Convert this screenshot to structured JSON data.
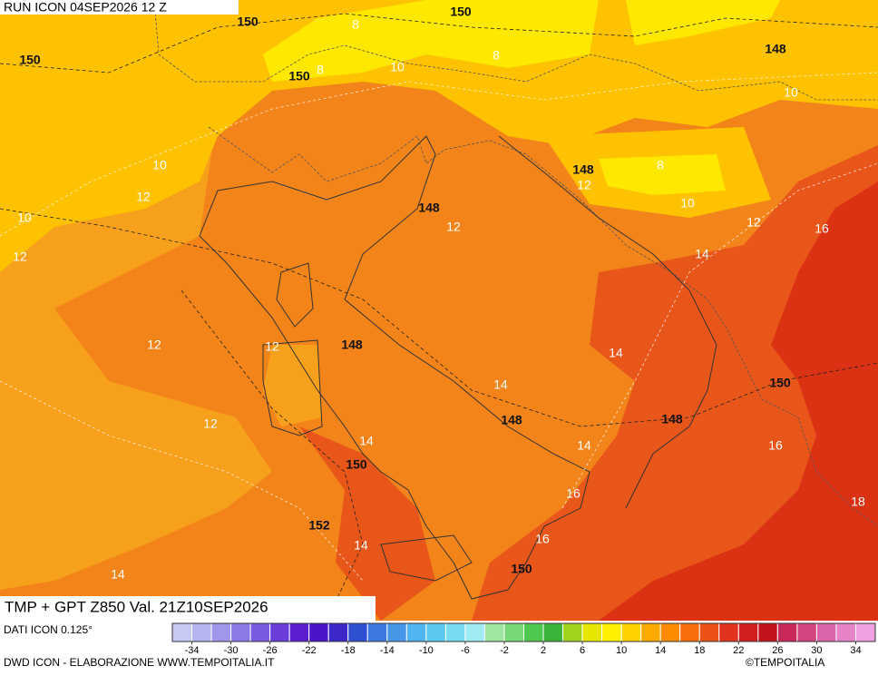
{
  "header": {
    "run": "RUN ICON 04SEP2026 12 Z",
    "field": "TMP + GPT Z850 Val. 21Z10SEP2026"
  },
  "map": {
    "contour_labels": [
      150,
      150,
      150,
      150,
      148,
      148,
      148,
      148,
      150,
      148,
      148,
      150,
      152,
      150
    ],
    "isotherm_labels": [
      8,
      8,
      8,
      10,
      10,
      10,
      8,
      12,
      10,
      12,
      10,
      12,
      12,
      16,
      12,
      14,
      12,
      12,
      14,
      14,
      12,
      14,
      14,
      16,
      16,
      18,
      16,
      14,
      14
    ]
  },
  "colorbar": {
    "source": "DATI ICON 0.125°",
    "range": [
      -36,
      36
    ],
    "ticks": [
      -34,
      -30,
      -26,
      -22,
      -18,
      -14,
      -10,
      -6,
      -2,
      2,
      6,
      10,
      14,
      18,
      22,
      26,
      30,
      34
    ],
    "colors": [
      "#c8c8f5",
      "#b4b4f0",
      "#a096ec",
      "#8c78e6",
      "#7a5ae0",
      "#6a3cd8",
      "#5a1ed0",
      "#4a14c8",
      "#3c28c8",
      "#3050d4",
      "#3c78e0",
      "#4896e8",
      "#50b4f0",
      "#5ac8f0",
      "#78dcf0",
      "#a0ecf5",
      "#a0e6a0",
      "#78d878",
      "#50c850",
      "#3cb43c",
      "#a0d21e",
      "#e6e600",
      "#fff000",
      "#ffd200",
      "#ffaa00",
      "#ff8c00",
      "#f56e0a",
      "#eb5014",
      "#e1321e",
      "#d21e1e",
      "#c3141e",
      "#c8285a",
      "#d24682",
      "#dc64aa",
      "#e682c8",
      "#f0a0e1"
    ]
  },
  "footer": {
    "credit": "DWD ICON - ELABORAZIONE WWW.TEMPOITALIA.IT",
    "copyright": "©TEMPOITALIA"
  }
}
